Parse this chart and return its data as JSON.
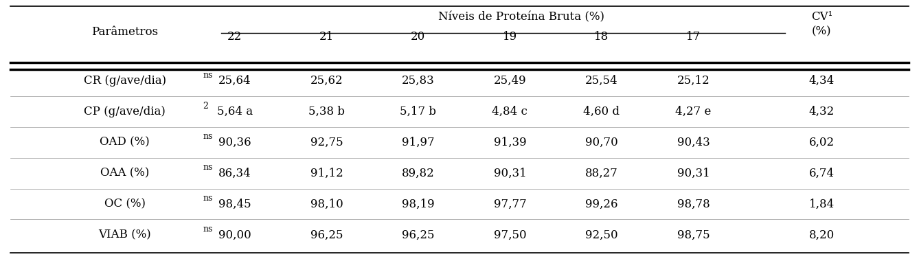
{
  "title_group": "Níveis de Proteína Bruta (%)",
  "col_header_param": "Parâmetros",
  "col_header_cv": "CV¹\n(%)",
  "protein_levels": [
    "22",
    "21",
    "20",
    "19",
    "18",
    "17"
  ],
  "rows": [
    {
      "param": "CR (g/ave/dia)",
      "superscript": "ns",
      "values": [
        "25,64",
        "25,62",
        "25,83",
        "25,49",
        "25,54",
        "25,12"
      ],
      "cv": "4,34"
    },
    {
      "param": "CP (g/ave/dia)",
      "superscript": "2",
      "values": [
        "5,64 a",
        "5,38 b",
        "5,17 b",
        "4,84 c",
        "4,60 d",
        "4,27 e"
      ],
      "cv": "4,32"
    },
    {
      "param": "OAD (%)",
      "superscript": "ns",
      "values": [
        "90,36",
        "92,75",
        "91,97",
        "91,39",
        "90,70",
        "90,43"
      ],
      "cv": "6,02"
    },
    {
      "param": "OAA (%)",
      "superscript": "ns",
      "values": [
        "86,34",
        "91,12",
        "89,82",
        "90,31",
        "88,27",
        "90,31"
      ],
      "cv": "6,74"
    },
    {
      "param": "OC (%)",
      "superscript": "ns",
      "values": [
        "98,45",
        "98,10",
        "98,19",
        "97,77",
        "99,26",
        "98,78"
      ],
      "cv": "1,84"
    },
    {
      "param": "VIAB (%)",
      "superscript": "ns",
      "values": [
        "90,00",
        "96,25",
        "96,25",
        "97,50",
        "92,50",
        "98,75"
      ],
      "cv": "8,20"
    }
  ],
  "bg_color": "#ffffff",
  "text_color": "#000000",
  "line_color": "#000000",
  "font_size_header": 12,
  "font_size_body": 12
}
